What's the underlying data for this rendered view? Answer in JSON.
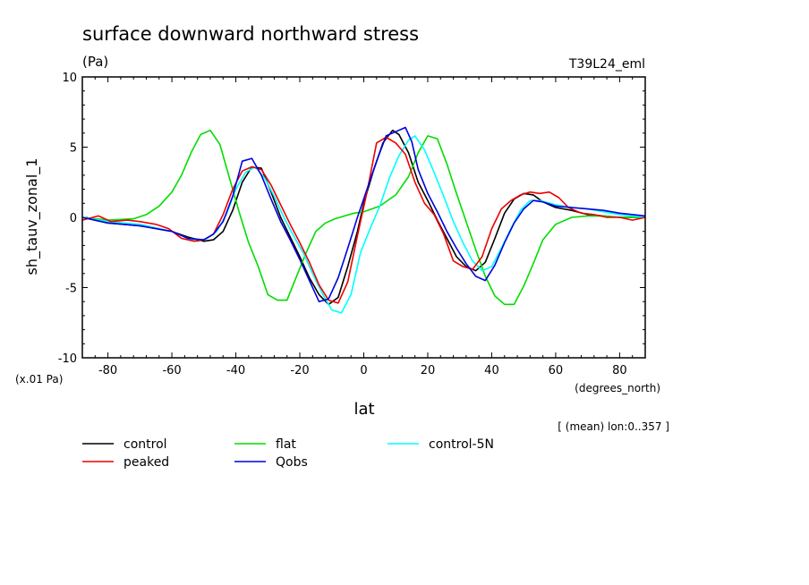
{
  "chart_data": {
    "type": "line",
    "title": "surface downward northward stress",
    "units_label": "(Pa)",
    "scale_note": "(x.01 Pa)",
    "experiment_label": "T39L24_eml",
    "ylabel": "sh_tauv_zonal_1",
    "xlabel": "lat",
    "x_units_label": "(degrees_north)",
    "mean_note": "[ (mean) lon:0..357 ]",
    "xlim": [
      -88,
      88
    ],
    "ylim": [
      -10,
      10
    ],
    "x_ticks": [
      -80,
      -60,
      -40,
      -20,
      0,
      20,
      40,
      60,
      80
    ],
    "y_ticks": [
      -10,
      -5,
      0,
      5,
      10
    ],
    "x_minor_step": 4,
    "y_minor_step": 1,
    "grid": false,
    "legend_position": "bottom",
    "series": [
      {
        "name": "control",
        "color": "#000000",
        "x": [
          -88,
          -80,
          -70,
          -60,
          -55,
          -50,
          -47,
          -44,
          -41,
          -38,
          -35,
          -32,
          -29,
          -26,
          -23,
          -20,
          -17,
          -14,
          -11,
          -8,
          -5,
          -2,
          0,
          3,
          6,
          9,
          11,
          14,
          17,
          20,
          23,
          26,
          29,
          32,
          35,
          38,
          41,
          44,
          47,
          50,
          53,
          56,
          60,
          65,
          70,
          75,
          80,
          88
        ],
        "y": [
          0,
          -0.4,
          -0.6,
          -1,
          -1.4,
          -1.7,
          -1.6,
          -1,
          0.5,
          2.5,
          3.6,
          3.5,
          1.8,
          0,
          -1.4,
          -2.8,
          -4.3,
          -5.5,
          -6.2,
          -5.7,
          -3.5,
          -1,
          1,
          3.3,
          5.3,
          6.2,
          5.9,
          4.6,
          2.5,
          1.2,
          -0.2,
          -1.5,
          -2.8,
          -3.5,
          -3.8,
          -3.2,
          -1.5,
          0.3,
          1.3,
          1.7,
          1.6,
          1.1,
          0.7,
          0.5,
          0.2,
          0.1,
          0,
          0
        ]
      },
      {
        "name": "flat",
        "color": "#00dd00",
        "x": [
          -88,
          -80,
          -72,
          -68,
          -64,
          -60,
          -57,
          -54,
          -51,
          -48,
          -45,
          -42,
          -39,
          -36,
          -33,
          -30,
          -27,
          -24,
          -21,
          -18,
          -15,
          -12,
          -9,
          -6,
          -3,
          0,
          5,
          10,
          14,
          17,
          20,
          23,
          26,
          29,
          32,
          35,
          38,
          41,
          44,
          47,
          50,
          53,
          56,
          60,
          65,
          70,
          75,
          80,
          88
        ],
        "y": [
          0,
          -0.2,
          -0.1,
          0.2,
          0.8,
          1.8,
          3,
          4.6,
          5.9,
          6.2,
          5.2,
          2.8,
          0.4,
          -1.8,
          -3.5,
          -5.5,
          -5.9,
          -5.9,
          -4.2,
          -2.5,
          -1,
          -0.4,
          -0.1,
          0.1,
          0.3,
          0.4,
          0.8,
          1.6,
          2.9,
          4.6,
          5.8,
          5.6,
          3.8,
          1.7,
          -0.3,
          -2.3,
          -4.2,
          -5.6,
          -6.2,
          -6.2,
          -4.9,
          -3.3,
          -1.6,
          -0.5,
          0,
          0.1,
          0.1,
          0,
          0
        ]
      },
      {
        "name": "control-5N",
        "color": "#00ffff",
        "x": [
          -88,
          -80,
          -70,
          -60,
          -55,
          -52,
          -49,
          -46,
          -43,
          -40,
          -37,
          -34,
          -31,
          -28,
          -25,
          -22,
          -19,
          -16,
          -13,
          -10,
          -7,
          -4,
          -1,
          2,
          5,
          8,
          11,
          14,
          16,
          19,
          22,
          25,
          28,
          31,
          34,
          37,
          40,
          43,
          46,
          49,
          52,
          55,
          60,
          65,
          70,
          75,
          80,
          88
        ],
        "y": [
          0,
          -0.3,
          -0.5,
          -1,
          -1.5,
          -1.7,
          -1.5,
          -1,
          0.2,
          2,
          3.2,
          3.6,
          2.8,
          1.5,
          0,
          -1.3,
          -2.5,
          -4,
          -5.4,
          -6.6,
          -6.8,
          -5.5,
          -2.5,
          -0.8,
          0.8,
          2.8,
          4.4,
          5.5,
          5.8,
          4.8,
          3.2,
          1.5,
          -0.3,
          -1.8,
          -3.1,
          -3.8,
          -3.5,
          -2.2,
          -0.8,
          0.5,
          1.2,
          1.2,
          0.9,
          0.7,
          0.6,
          0.4,
          0.2,
          0
        ]
      },
      {
        "name": "peaked",
        "color": "#ee0000",
        "x": [
          -88,
          -83,
          -79,
          -74,
          -70,
          -65,
          -61,
          -57,
          -53,
          -50,
          -47,
          -44,
          -41,
          -38,
          -35,
          -32,
          -29,
          -26,
          -23,
          -20,
          -17,
          -14,
          -11,
          -8,
          -5,
          -2,
          1,
          4,
          7,
          10,
          13,
          16,
          19,
          22,
          25,
          28,
          31,
          34,
          37,
          40,
          43,
          46,
          49,
          52,
          55,
          58,
          61,
          64,
          68,
          72,
          76,
          80,
          84,
          88
        ],
        "y": [
          -0.2,
          0.1,
          -0.3,
          -0.2,
          -0.3,
          -0.5,
          -0.8,
          -1.5,
          -1.7,
          -1.6,
          -1.2,
          0.2,
          2,
          3.3,
          3.6,
          3.4,
          2.3,
          0.9,
          -0.5,
          -1.8,
          -3.2,
          -4.8,
          -5.9,
          -6.1,
          -4.6,
          -1.3,
          1.8,
          5.3,
          5.7,
          5.3,
          4.5,
          2.5,
          1,
          0.2,
          -1.2,
          -3.1,
          -3.5,
          -3.7,
          -2.8,
          -0.8,
          0.6,
          1.2,
          1.6,
          1.8,
          1.7,
          1.8,
          1.4,
          0.7,
          0.3,
          0.2,
          0,
          0,
          -0.2,
          0
        ]
      },
      {
        "name": "Qobs",
        "color": "#0000dd",
        "x": [
          -88,
          -80,
          -70,
          -60,
          -55,
          -50,
          -47,
          -44,
          -41,
          -38,
          -35,
          -32,
          -29,
          -26,
          -23,
          -20,
          -17,
          -14,
          -11,
          -8,
          -5,
          -2,
          1,
          4,
          7,
          10,
          13,
          15,
          17,
          20,
          23,
          26,
          29,
          32,
          35,
          38,
          41,
          44,
          47,
          50,
          53,
          56,
          60,
          65,
          70,
          75,
          80,
          88
        ],
        "y": [
          0,
          -0.4,
          -0.6,
          -1,
          -1.5,
          -1.6,
          -1.2,
          -0.3,
          1.5,
          4,
          4.2,
          3,
          1.3,
          -0.3,
          -1.6,
          -3,
          -4.5,
          -6,
          -5.8,
          -4.3,
          -2.2,
          0,
          2,
          4,
          5.8,
          6.1,
          6.4,
          5.4,
          3.4,
          1.7,
          0.4,
          -1,
          -2.2,
          -3.3,
          -4.2,
          -4.5,
          -3.4,
          -1.8,
          -0.4,
          0.6,
          1.2,
          1.1,
          0.8,
          0.7,
          0.6,
          0.5,
          0.3,
          0.1
        ]
      }
    ]
  }
}
